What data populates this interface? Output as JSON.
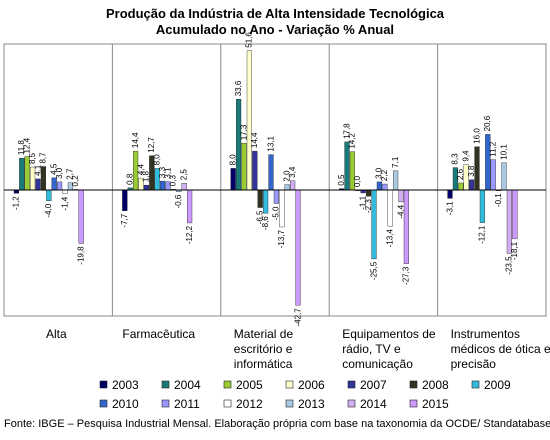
{
  "chart_data": {
    "type": "bar",
    "title": "Produção da Indústria de Alta Intensidade Tecnológica",
    "subtitle": "Acumulado no Ano - Variação % Anual",
    "categories": [
      [
        "Alta"
      ],
      [
        "Farmacêutica"
      ],
      [
        "Material de",
        "escritório e",
        "informática"
      ],
      [
        "Equipamentos de",
        "rádio, TV e",
        "comunicação"
      ],
      [
        "Instrumentos",
        "médicos de ótica e",
        "precisão"
      ]
    ],
    "ylim": [
      -45,
      55
    ],
    "grid": false,
    "legend_position": "bottom",
    "series": [
      {
        "name": "2003",
        "color": "#000066",
        "values": [
          -1.2,
          -7.7,
          8.0,
          0.5,
          -3.1
        ]
      },
      {
        "name": "2004",
        "color": "#1a7a7a",
        "values": [
          11.8,
          0.8,
          33.6,
          17.8,
          8.3
        ]
      },
      {
        "name": "2005",
        "color": "#99cc33",
        "values": [
          12.4,
          14.4,
          17.3,
          14.2,
          2.6
        ]
      },
      {
        "name": "2006",
        "color": "#ffffcc",
        "values": [
          8.5,
          4.4,
          51.6,
          0.0,
          9.4
        ]
      },
      {
        "name": "2007",
        "color": "#333399",
        "values": [
          4.1,
          1.8,
          14.4,
          -1.1,
          3.8
        ]
      },
      {
        "name": "2008",
        "color": "#333322",
        "values": [
          8.7,
          12.7,
          -6.5,
          -2.3,
          16.0
        ]
      },
      {
        "name": "2009",
        "color": "#33bbdd",
        "values": [
          -4.0,
          8.0,
          -8.6,
          -25.5,
          -12.1
        ]
      },
      {
        "name": "2010",
        "color": "#3366cc",
        "values": [
          4.5,
          3.3,
          13.1,
          3.0,
          20.6
        ]
      },
      {
        "name": "2011",
        "color": "#9999ff",
        "values": [
          3.0,
          3.1,
          -5.0,
          2.2,
          11.2
        ]
      },
      {
        "name": "2012",
        "color": "#ffffff",
        "values": [
          -1.4,
          0.3,
          -13.7,
          -13.4,
          -0.1
        ]
      },
      {
        "name": "2013",
        "color": "#aac8e0",
        "values": [
          2.7,
          -0.6,
          2.0,
          7.1,
          10.1
        ]
      },
      {
        "name": "2014",
        "color": "#d0b0f0",
        "values": [
          0.2,
          2.5,
          3.4,
          -4.4,
          -23.5
        ]
      },
      {
        "name": "2015",
        "color": "#cc99ff",
        "values": [
          -19.8,
          -12.2,
          -42.7,
          -27.3,
          -18.1
        ]
      }
    ],
    "data_labels": [
      [
        "-1,2",
        "11,8",
        "12,4",
        "8,5",
        "4,1",
        "8,7",
        "-4,0",
        "4,5",
        "3,0",
        "-1,4",
        "2,7",
        "0,2",
        "-19,8"
      ],
      [
        "-7,7",
        "0,8",
        "14,4",
        "4,4",
        "1,8",
        "12,7",
        "8,0",
        "3,3",
        "3,1",
        "0,3",
        "-0,6",
        "2,5",
        "-12,2"
      ],
      [
        "8,0",
        "33,6",
        "17,3",
        "51,6",
        "14,4",
        "-6,5",
        "-8,6",
        "13,1",
        "-5,0",
        "-13,7",
        "2,0",
        "3,4",
        "-42,7"
      ],
      [
        "0,5",
        "17,8",
        "14,2",
        "0,0",
        "-1,1",
        "-2,3",
        "-25,5",
        "3,0",
        "2,2",
        "-13,4",
        "7,1",
        "-4,4",
        "-27,3"
      ],
      [
        "-3,1",
        "8,3",
        "2,6",
        "9,4",
        "3,8",
        "16,0",
        "-12,1",
        "20,6",
        "11,2",
        "-0,1",
        "10,1",
        "-23,5",
        "-18,1"
      ]
    ]
  },
  "source_note": "Fonte: IBGE – Pesquisa Industrial Mensal. Elaboração própria com base na taxonomia da OCDE/ Standatabase."
}
